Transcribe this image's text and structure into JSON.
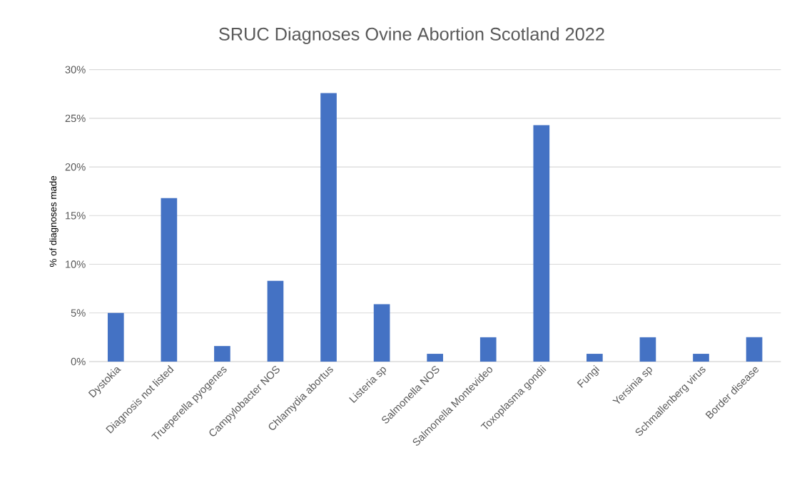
{
  "chart_data": {
    "type": "bar",
    "title": "SRUC Diagnoses Ovine Abortion Scotland 2022",
    "ylabel": "% of diagnoses made",
    "categories": [
      "Dystokia",
      "Diagnosis not listed",
      "Trueperella pyogenes",
      "Campylobacter NOS",
      "Chlamydia abortus",
      "Listeria sp",
      "Salmonella NOS",
      "Salmonella Montevideo",
      "Toxoplasma gondii",
      "Fungi",
      "Yersinia sp",
      "Schmallenberg virus",
      "Border disease"
    ],
    "values": [
      5.0,
      16.8,
      1.6,
      8.3,
      27.6,
      5.9,
      0.8,
      2.5,
      24.3,
      0.8,
      2.5,
      0.8,
      2.5
    ],
    "color": "#4472c4",
    "ylim": [
      0,
      30
    ],
    "yticks": [
      {
        "value": 0,
        "label": "0%"
      },
      {
        "value": 5,
        "label": "5%"
      },
      {
        "value": 10,
        "label": "10%"
      },
      {
        "value": 15,
        "label": "15%"
      },
      {
        "value": 20,
        "label": "20%"
      },
      {
        "value": 25,
        "label": "25%"
      },
      {
        "value": 30,
        "label": "30%"
      }
    ],
    "grid": "y"
  }
}
